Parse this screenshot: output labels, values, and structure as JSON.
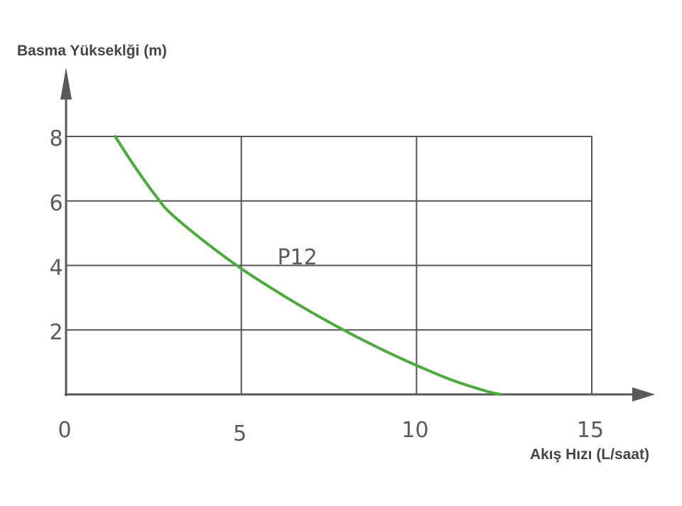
{
  "chart_data": {
    "type": "line",
    "title": "",
    "ylabel": "Basma Yükseklği (m)",
    "xlabel": "Akış Hızı (L/saat)",
    "xlim": [
      0,
      15
    ],
    "ylim": [
      0,
      8
    ],
    "x_ticks": [
      "0",
      "5",
      "10",
      "15"
    ],
    "y_ticks": [
      "2",
      "4",
      "6",
      "8"
    ],
    "grid": true,
    "series": [
      {
        "name": "P12",
        "color": "#4cab3c",
        "x": [
          1.4,
          2.0,
          2.6,
          3.0,
          4.0,
          5.0,
          6.0,
          7.0,
          8.0,
          9.0,
          10.0,
          11.0,
          12.0,
          12.4
        ],
        "y": [
          8.0,
          7.0,
          6.1,
          5.6,
          4.7,
          3.9,
          3.2,
          2.55,
          1.95,
          1.4,
          0.9,
          0.45,
          0.1,
          0.0
        ]
      }
    ],
    "annotations": [
      {
        "text": "P12",
        "x": 6.6,
        "y": 4.3
      }
    ]
  },
  "colors": {
    "axis": "#595959",
    "grid": "#555555",
    "curve": "#4cab3c"
  }
}
